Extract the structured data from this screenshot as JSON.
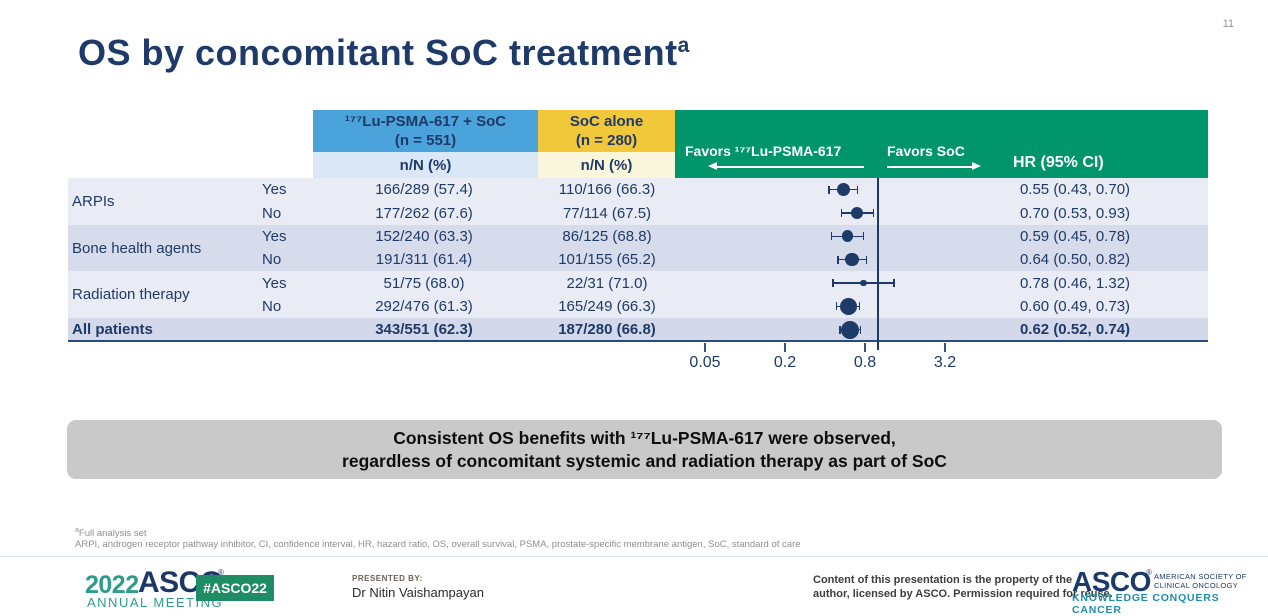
{
  "page_number": "11",
  "title": {
    "text": "OS by concomitant SoC treatment",
    "sup": "a"
  },
  "table": {
    "col_lu": {
      "line1": "¹⁷⁷Lu-PSMA-617 + SoC",
      "line2": "(n = 551)",
      "sub": "n/N (%)"
    },
    "col_soc": {
      "line1": "SoC alone",
      "line2": "(n = 280)",
      "sub": "n/N (%)"
    },
    "favors_left": "Favors ¹⁷⁷Lu-PSMA-617",
    "favors_right": "Favors SoC",
    "hr_header": "HR (95% CI)"
  },
  "chart_data": {
    "type": "forest",
    "scale": "log",
    "axis_ticks": [
      0.05,
      0.2,
      0.8,
      3.2
    ],
    "reference_line": 1.0,
    "groups": [
      {
        "label": "ARPIs",
        "rows": [
          0,
          1
        ],
        "bold": false
      },
      {
        "label": "Bone health agents",
        "rows": [
          2,
          3
        ],
        "bold": false
      },
      {
        "label": "Radiation therapy",
        "rows": [
          4,
          5
        ],
        "bold": false
      },
      {
        "label": "All patients",
        "rows": [
          6
        ],
        "bold": true
      }
    ],
    "rows": [
      {
        "sub": "Yes",
        "lu": "166/289 (57.4)",
        "soc": "110/166 (66.3)",
        "hr": 0.55,
        "ci": [
          0.43,
          0.7
        ],
        "hr_text": "0.55 (0.43, 0.70)",
        "bold": false
      },
      {
        "sub": "No",
        "lu": "177/262 (67.6)",
        "soc": "77/114 (67.5)",
        "hr": 0.7,
        "ci": [
          0.53,
          0.93
        ],
        "hr_text": "0.70 (0.53, 0.93)",
        "bold": false
      },
      {
        "sub": "Yes",
        "lu": "152/240 (63.3)",
        "soc": "86/125 (68.8)",
        "hr": 0.59,
        "ci": [
          0.45,
          0.78
        ],
        "hr_text": "0.59 (0.45, 0.78)",
        "bold": false
      },
      {
        "sub": "No",
        "lu": "191/311 (61.4)",
        "soc": "101/155 (65.2)",
        "hr": 0.64,
        "ci": [
          0.5,
          0.82
        ],
        "hr_text": "0.64 (0.50, 0.82)",
        "bold": false
      },
      {
        "sub": "Yes",
        "lu": "51/75 (68.0)",
        "soc": "22/31 (71.0)",
        "hr": 0.78,
        "ci": [
          0.46,
          1.32
        ],
        "hr_text": "0.78 (0.46, 1.32)",
        "bold": false
      },
      {
        "sub": "No",
        "lu": "292/476 (61.3)",
        "soc": "165/249 (66.3)",
        "hr": 0.6,
        "ci": [
          0.49,
          0.73
        ],
        "hr_text": "0.60 (0.49, 0.73)",
        "bold": false
      },
      {
        "sub": "",
        "lu": "343/551 (62.3)",
        "soc": "187/280 (66.8)",
        "hr": 0.62,
        "ci": [
          0.52,
          0.74
        ],
        "hr_text": "0.62 (0.52, 0.74)",
        "bold": true
      }
    ]
  },
  "summary_box": {
    "line1": "Consistent OS benefits with ¹⁷⁷Lu-PSMA-617 were observed,",
    "line2": "regardless of concomitant systemic and radiation therapy as part of SoC"
  },
  "footnotes": {
    "marker": "a",
    "line1": "Full analysis set",
    "line2": "ARPI, androgen receptor pathway inhibitor, CI, confidence interval, HR, hazard ratio, OS, overall survival, PSMA, prostate-specific membrane antigen, SoC, standard of care"
  },
  "footer": {
    "meeting_year": "2022",
    "meeting_org": "ASCO",
    "meeting_reg": "®",
    "meeting_name": "ANNUAL MEETING",
    "hashtag": "#ASCO22",
    "presented_by_label": "PRESENTED BY:",
    "presenter": "Dr Nitin Vaishampayan",
    "copyright_line1": "Content of this presentation is the property of the",
    "copyright_line2": "author, licensed by ASCO. Permission required for reuse.",
    "asco_logo": "ASCO",
    "asco_reg": "®",
    "asco_society_line1": "AMERICAN SOCIETY OF",
    "asco_society_line2": "CLINICAL ONCOLOGY",
    "asco_tagline": "KNOWLEDGE CONQUERS CANCER"
  },
  "colors": {
    "navy": "#1E3A68",
    "blue_header": "#4BA3DB",
    "blue_sub": "#D9E7F6",
    "yellow_header": "#F2C83B",
    "yellow_sub": "#FBF7DC",
    "green_header": "#00956B",
    "row_light": "#E9EBF5",
    "row_dark": "#D7DCEC",
    "row_total": "#D3D8EA",
    "summary_bg": "#C9C9C9",
    "badge_green": "#1E8C64",
    "teal": "#2E9C8C",
    "tagline_teal": "#1E8FA8"
  }
}
